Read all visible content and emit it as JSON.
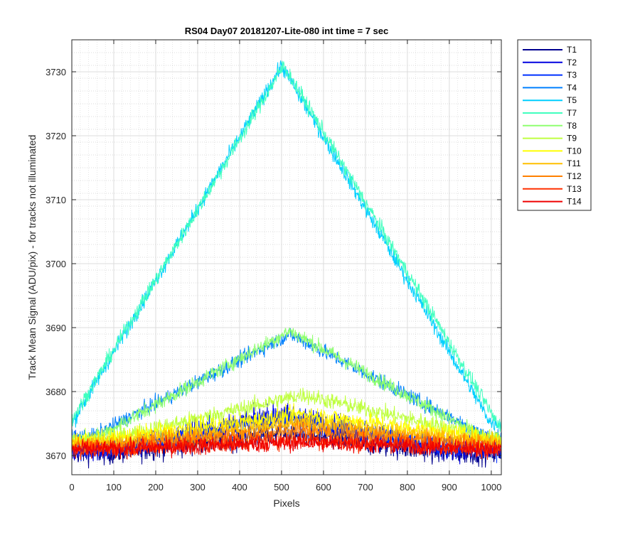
{
  "chart_data": {
    "type": "line",
    "title": "RS04 Day07 20181207-Lite-080 int time = 7 sec",
    "xlabel": "Pixels",
    "ylabel": "Track Mean Signal (ADU/pix) - for tracks not illuminated",
    "xlim": [
      0,
      1024
    ],
    "ylim": [
      3667,
      3735
    ],
    "x_ticks": [
      0,
      100,
      200,
      300,
      400,
      500,
      600,
      700,
      800,
      900,
      1000
    ],
    "y_ticks": [
      3670,
      3680,
      3690,
      3700,
      3710,
      3720,
      3730
    ],
    "x_range": [
      0,
      1024
    ],
    "grid": true,
    "minor_grid": true,
    "legend_position": "outside-right",
    "series": [
      {
        "name": "T1",
        "color": "#00008f",
        "baseline": 3670.5,
        "peak": 3673.5,
        "center": 500,
        "width": 400,
        "noise": 1.6
      },
      {
        "name": "T2",
        "color": "#0000df",
        "baseline": 3671.0,
        "peak": 3676.5,
        "center": 500,
        "width": 380,
        "noise": 1.6
      },
      {
        "name": "T3",
        "color": "#0030ff",
        "baseline": 3671.5,
        "peak": 3676.0,
        "center": 500,
        "width": 380,
        "noise": 1.5
      },
      {
        "name": "T4",
        "color": "#0080ff",
        "baseline": 3673.0,
        "peak": 3689.0,
        "center": 520,
        "width": 470,
        "noise": 1.0
      },
      {
        "name": "T5",
        "color": "#00cfff",
        "baseline": 3675.0,
        "peak": 3731.0,
        "center": 500,
        "width": 500,
        "noise": 1.0
      },
      {
        "name": "T7",
        "color": "#40ffbf",
        "baseline": 3675.0,
        "peak": 3731.0,
        "center": 505,
        "width": 510,
        "noise": 1.0
      },
      {
        "name": "T8",
        "color": "#8fff70",
        "baseline": 3672.5,
        "peak": 3689.5,
        "center": 520,
        "width": 470,
        "noise": 1.0
      },
      {
        "name": "T9",
        "color": "#bfff40",
        "baseline": 3672.5,
        "peak": 3679.5,
        "center": 550,
        "width": 470,
        "noise": 1.1
      },
      {
        "name": "T10",
        "color": "#ffff00",
        "baseline": 3672.5,
        "peak": 3676.5,
        "center": 550,
        "width": 470,
        "noise": 1.2
      },
      {
        "name": "T11",
        "color": "#ffbf00",
        "baseline": 3672.0,
        "peak": 3675.0,
        "center": 550,
        "width": 470,
        "noise": 1.2
      },
      {
        "name": "T12",
        "color": "#ff8000",
        "baseline": 3671.5,
        "peak": 3674.0,
        "center": 550,
        "width": 470,
        "noise": 1.2
      },
      {
        "name": "T13",
        "color": "#ff3000",
        "baseline": 3671.0,
        "peak": 3672.5,
        "center": 550,
        "width": 470,
        "noise": 1.2
      },
      {
        "name": "T14",
        "color": "#ef0000",
        "baseline": 3671.0,
        "peak": 3672.0,
        "center": 550,
        "width": 470,
        "noise": 1.1
      }
    ]
  }
}
